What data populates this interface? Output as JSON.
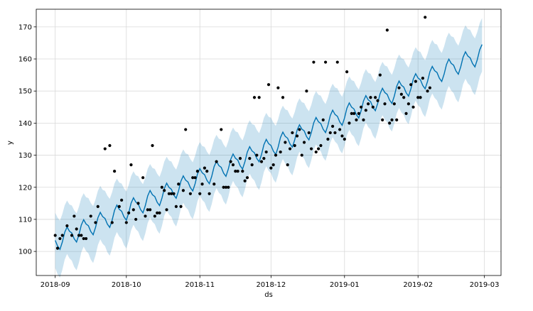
{
  "chart_data": {
    "type": "scatter",
    "title": "",
    "xlabel": "ds",
    "ylabel": "y",
    "x_tick_labels": [
      "2018-09",
      "2018-10",
      "2018-11",
      "2018-12",
      "2019-01",
      "2019-02",
      "2019-03"
    ],
    "x_tick_dates": [
      "2018-09-01",
      "2018-10-01",
      "2018-11-01",
      "2018-12-01",
      "2019-01-01",
      "2019-02-01",
      "2019-03-01"
    ],
    "y_ticks": [
      100,
      110,
      120,
      130,
      140,
      150,
      160,
      170
    ],
    "xlim": [
      "2018-08-24",
      "2019-03-08"
    ],
    "ylim": [
      92.5,
      175.5
    ],
    "grid": true,
    "legend": "none",
    "colors": {
      "points": "#000000",
      "forecast": "#0072B2",
      "interval": "#0072B2",
      "interval_opacity": 0.2,
      "grid": "#d9d9d9",
      "axes": "#000000"
    },
    "forecast": {
      "start": "2018-09-01",
      "end": "2019-02-28",
      "y_at_start": 103.0,
      "y_at_end": 161.5,
      "weekly_amplitude": 3.0,
      "interval_halfwidth": 8.6
    },
    "series": [
      {
        "points": [
          [
            "2018-09-01",
            105
          ],
          [
            "2018-09-02",
            101
          ],
          [
            "2018-09-03",
            104
          ],
          [
            "2018-09-04",
            105
          ],
          [
            "2018-09-06",
            108
          ],
          [
            "2018-09-08",
            105
          ],
          [
            "2018-09-09",
            111
          ],
          [
            "2018-09-10",
            107
          ],
          [
            "2018-09-11",
            105
          ],
          [
            "2018-09-12",
            105
          ],
          [
            "2018-09-13",
            104
          ],
          [
            "2018-09-14",
            104
          ],
          [
            "2018-09-16",
            111
          ],
          [
            "2018-09-18",
            109
          ],
          [
            "2018-09-19",
            114
          ],
          [
            "2018-09-22",
            132
          ],
          [
            "2018-09-24",
            133
          ],
          [
            "2018-09-25",
            109
          ],
          [
            "2018-09-26",
            125
          ],
          [
            "2018-09-28",
            114
          ],
          [
            "2018-09-29",
            116
          ],
          [
            "2018-10-01",
            109
          ],
          [
            "2018-10-02",
            112
          ],
          [
            "2018-10-03",
            127
          ],
          [
            "2018-10-04",
            113
          ],
          [
            "2018-10-05",
            110
          ],
          [
            "2018-10-06",
            115
          ],
          [
            "2018-10-08",
            123
          ],
          [
            "2018-10-09",
            111
          ],
          [
            "2018-10-10",
            113
          ],
          [
            "2018-10-11",
            113
          ],
          [
            "2018-10-12",
            133
          ],
          [
            "2018-10-13",
            111
          ],
          [
            "2018-10-14",
            112
          ],
          [
            "2018-10-15",
            112
          ],
          [
            "2018-10-16",
            120
          ],
          [
            "2018-10-17",
            119
          ],
          [
            "2018-10-18",
            113
          ],
          [
            "2018-10-19",
            118
          ],
          [
            "2018-10-20",
            118
          ],
          [
            "2018-10-21",
            118
          ],
          [
            "2018-10-22",
            114
          ],
          [
            "2018-10-23",
            121
          ],
          [
            "2018-10-24",
            114
          ],
          [
            "2018-10-25",
            119
          ],
          [
            "2018-10-26",
            138
          ],
          [
            "2018-10-28",
            118
          ],
          [
            "2018-10-29",
            123
          ],
          [
            "2018-10-30",
            123
          ],
          [
            "2018-10-31",
            125
          ],
          [
            "2018-11-01",
            118
          ],
          [
            "2018-11-02",
            121
          ],
          [
            "2018-11-03",
            126
          ],
          [
            "2018-11-04",
            125
          ],
          [
            "2018-11-05",
            118
          ],
          [
            "2018-11-07",
            121
          ],
          [
            "2018-11-08",
            128
          ],
          [
            "2018-11-10",
            138
          ],
          [
            "2018-11-11",
            120
          ],
          [
            "2018-11-12",
            120
          ],
          [
            "2018-11-13",
            120
          ],
          [
            "2018-11-14",
            128
          ],
          [
            "2018-11-15",
            127
          ],
          [
            "2018-11-16",
            125
          ],
          [
            "2018-11-17",
            125
          ],
          [
            "2018-11-18",
            129
          ],
          [
            "2018-11-19",
            125
          ],
          [
            "2018-11-20",
            122
          ],
          [
            "2018-11-21",
            123
          ],
          [
            "2018-11-22",
            129
          ],
          [
            "2018-11-23",
            127
          ],
          [
            "2018-11-24",
            148
          ],
          [
            "2018-11-25",
            130
          ],
          [
            "2018-11-26",
            148
          ],
          [
            "2018-11-27",
            128
          ],
          [
            "2018-11-28",
            129
          ],
          [
            "2018-11-29",
            131
          ],
          [
            "2018-11-30",
            152
          ],
          [
            "2018-12-01",
            126
          ],
          [
            "2018-12-02",
            127
          ],
          [
            "2018-12-03",
            130
          ],
          [
            "2018-12-04",
            151
          ],
          [
            "2018-12-05",
            131
          ],
          [
            "2018-12-06",
            148
          ],
          [
            "2018-12-07",
            134
          ],
          [
            "2018-12-08",
            127
          ],
          [
            "2018-12-09",
            132
          ],
          [
            "2018-12-10",
            137
          ],
          [
            "2018-12-11",
            133
          ],
          [
            "2018-12-12",
            136
          ],
          [
            "2018-12-13",
            138
          ],
          [
            "2018-12-14",
            130
          ],
          [
            "2018-12-15",
            134
          ],
          [
            "2018-12-16",
            150
          ],
          [
            "2018-12-17",
            137
          ],
          [
            "2018-12-18",
            132
          ],
          [
            "2018-12-19",
            159
          ],
          [
            "2018-12-20",
            131
          ],
          [
            "2018-12-21",
            132
          ],
          [
            "2018-12-22",
            133
          ],
          [
            "2018-12-23",
            141
          ],
          [
            "2018-12-24",
            159
          ],
          [
            "2018-12-25",
            135
          ],
          [
            "2018-12-26",
            137
          ],
          [
            "2018-12-27",
            139
          ],
          [
            "2018-12-28",
            137
          ],
          [
            "2018-12-29",
            159
          ],
          [
            "2018-12-30",
            138
          ],
          [
            "2018-12-31",
            136
          ],
          [
            "2019-01-01",
            135
          ],
          [
            "2019-01-02",
            156
          ],
          [
            "2019-01-03",
            140
          ],
          [
            "2019-01-04",
            143
          ],
          [
            "2019-01-05",
            143
          ],
          [
            "2019-01-06",
            141
          ],
          [
            "2019-01-07",
            143
          ],
          [
            "2019-01-08",
            145
          ],
          [
            "2019-01-09",
            141
          ],
          [
            "2019-01-10",
            144
          ],
          [
            "2019-01-11",
            146
          ],
          [
            "2019-01-12",
            148
          ],
          [
            "2019-01-13",
            145
          ],
          [
            "2019-01-14",
            148
          ],
          [
            "2019-01-15",
            147
          ],
          [
            "2019-01-16",
            155
          ],
          [
            "2019-01-17",
            141
          ],
          [
            "2019-01-18",
            146
          ],
          [
            "2019-01-19",
            169
          ],
          [
            "2019-01-20",
            140
          ],
          [
            "2019-01-21",
            141
          ],
          [
            "2019-01-22",
            146
          ],
          [
            "2019-01-23",
            141
          ],
          [
            "2019-01-24",
            151
          ],
          [
            "2019-01-25",
            149
          ],
          [
            "2019-01-26",
            148
          ],
          [
            "2019-01-27",
            143
          ],
          [
            "2019-01-28",
            146
          ],
          [
            "2019-01-29",
            152
          ],
          [
            "2019-01-30",
            145
          ],
          [
            "2019-01-31",
            153
          ],
          [
            "2019-02-01",
            148
          ],
          [
            "2019-02-02",
            148
          ],
          [
            "2019-02-03",
            154
          ],
          [
            "2019-02-04",
            173
          ],
          [
            "2019-02-05",
            150
          ],
          [
            "2019-02-06",
            151
          ]
        ]
      }
    ]
  }
}
